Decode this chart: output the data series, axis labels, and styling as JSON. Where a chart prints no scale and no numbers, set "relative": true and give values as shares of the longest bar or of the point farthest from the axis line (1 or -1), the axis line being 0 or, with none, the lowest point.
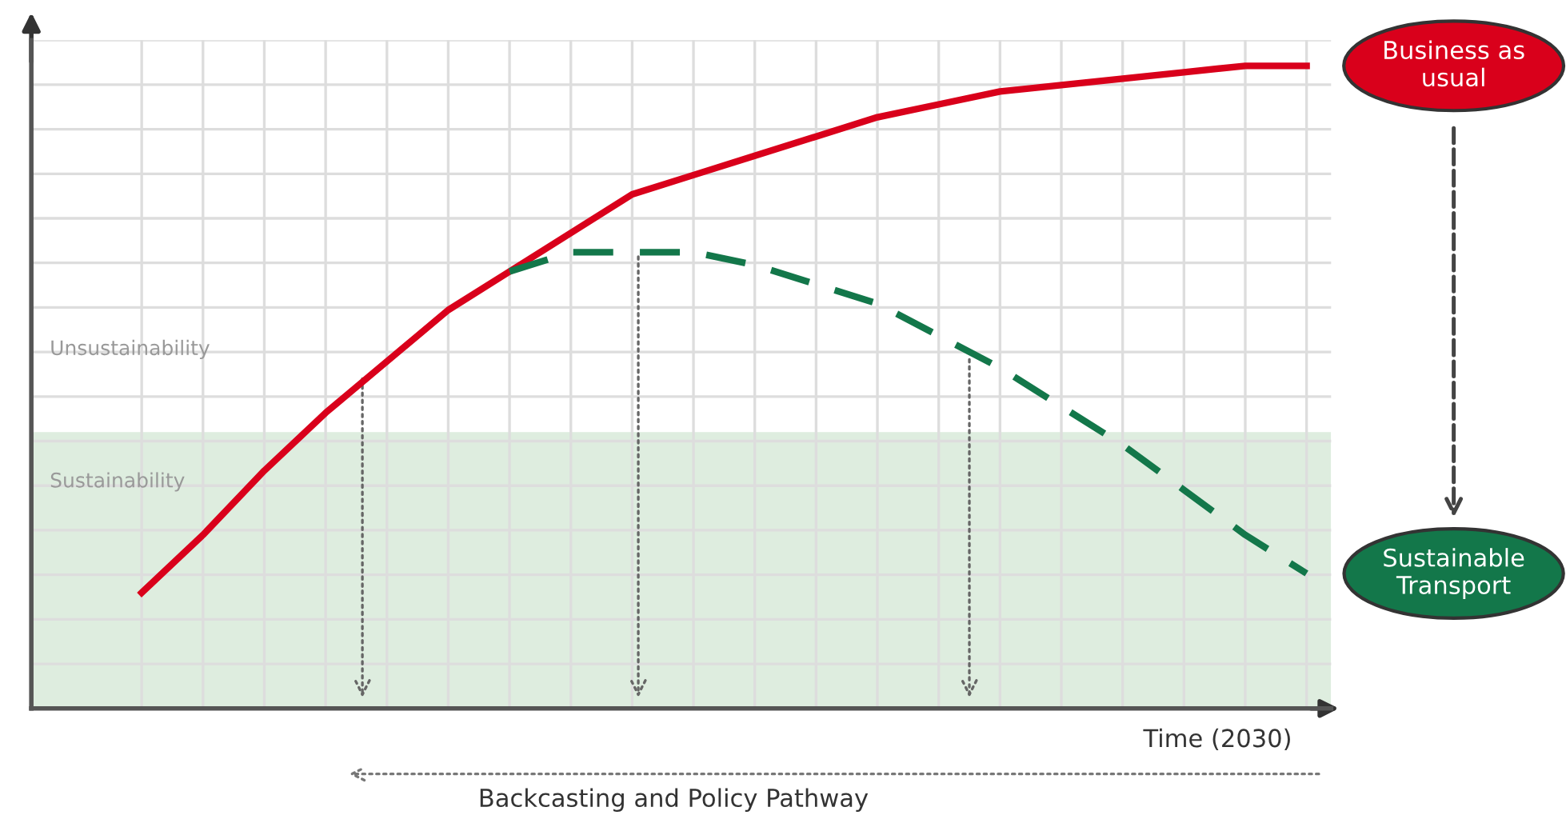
{
  "chart_data": {
    "type": "line",
    "relative": true,
    "xlabel": "Time (2030)",
    "grid": true,
    "legend": false,
    "categories": [
      null,
      null,
      null,
      null,
      null,
      null,
      null,
      null,
      null,
      null,
      null,
      null,
      null,
      null,
      null,
      null,
      null,
      null,
      null,
      null
    ],
    "series": [
      {
        "name": "Business as usual",
        "color": "#d9001b",
        "line_style": "solid",
        "values": [
          0.18,
          0.27,
          0.37,
          0.46,
          0.54,
          0.62,
          0.68,
          0.74,
          0.8,
          0.83,
          0.86,
          0.89,
          0.92,
          0.94,
          0.96,
          0.97,
          0.98,
          0.99,
          1.0,
          1.0
        ]
      },
      {
        "name": "Sustainable Transport",
        "color": "#13774a",
        "line_style": "dashed",
        "values": [
          null,
          null,
          null,
          null,
          null,
          null,
          0.68,
          0.71,
          0.71,
          0.71,
          0.69,
          0.66,
          0.63,
          0.58,
          0.53,
          0.47,
          0.41,
          0.34,
          0.27,
          0.21
        ]
      }
    ],
    "bands": [
      {
        "axis": "y",
        "from": 0,
        "to": 0.43,
        "label": "Sustainability",
        "color": "#deeddf"
      }
    ],
    "annotations": [
      "Unsustainability",
      "Backcasting and Policy Pathway"
    ]
  }
}
